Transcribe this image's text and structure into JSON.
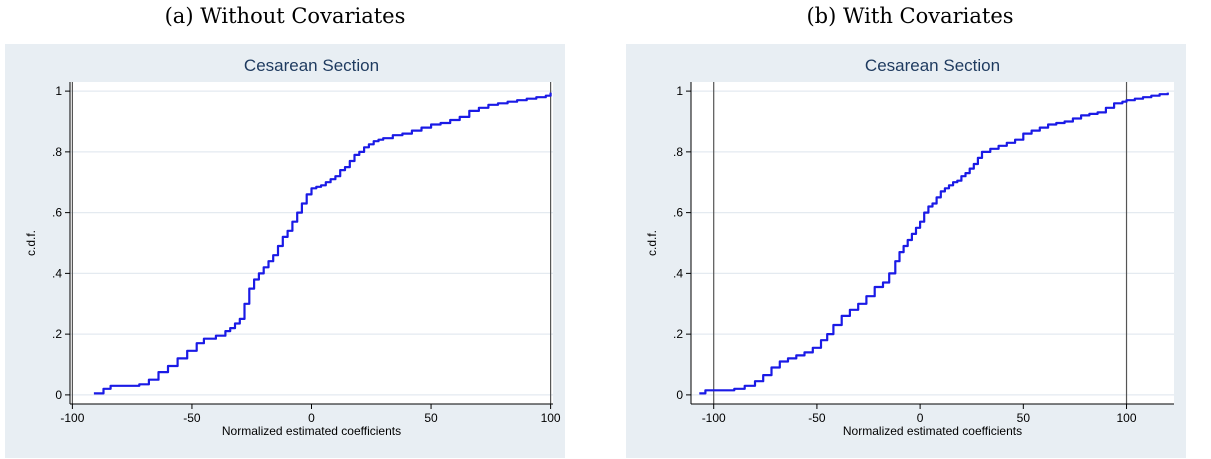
{
  "captions": [
    "(a) Without Covariates",
    "(b) With Covariates"
  ],
  "colors": {
    "outer_bg": "#e8eef3",
    "plot_bg": "#ffffff",
    "line": "#1a1ae6",
    "grid": "#e4eaf0",
    "title": "#1e3a5f",
    "axis": "#000000"
  },
  "chart_data": [
    {
      "type": "line",
      "title": "Cesarean Section",
      "xlabel": "Normalized estimated coefficients",
      "ylabel": "c.d.f.",
      "xlim": [
        -101,
        101
      ],
      "ylim": [
        -0.03,
        1.03
      ],
      "xticks": [
        -100,
        -50,
        0,
        50,
        100
      ],
      "xtick_labels": [
        "-100",
        "-50",
        "0",
        "50",
        "100"
      ],
      "yticks": [
        0,
        0.2,
        0.4,
        0.6,
        0.8,
        1
      ],
      "ytick_labels": [
        "0",
        ".2",
        ".4",
        ".6",
        ".8",
        "1"
      ],
      "grid": true,
      "vlines": [
        -100,
        100
      ],
      "series": [
        {
          "x": [
            -91,
            -87,
            -84,
            -72,
            -68,
            -64,
            -60,
            -56,
            -52,
            -48,
            -45,
            -40,
            -36,
            -34,
            -32,
            -30,
            -28,
            -26,
            -24,
            -22,
            -20,
            -18,
            -16,
            -14,
            -12,
            -10,
            -8,
            -6,
            -4,
            -2,
            0,
            2,
            4,
            6,
            8,
            10,
            12,
            14,
            16,
            18,
            20,
            22,
            24,
            26,
            28,
            30,
            34,
            38,
            42,
            46,
            50,
            54,
            58,
            62,
            66,
            70,
            74,
            78,
            82,
            86,
            90,
            94,
            98,
            100
          ],
          "y": [
            0.005,
            0.02,
            0.03,
            0.035,
            0.05,
            0.075,
            0.095,
            0.12,
            0.145,
            0.17,
            0.185,
            0.195,
            0.21,
            0.22,
            0.235,
            0.25,
            0.3,
            0.35,
            0.38,
            0.4,
            0.42,
            0.44,
            0.46,
            0.49,
            0.52,
            0.54,
            0.57,
            0.6,
            0.63,
            0.66,
            0.68,
            0.685,
            0.69,
            0.7,
            0.71,
            0.72,
            0.74,
            0.75,
            0.77,
            0.79,
            0.8,
            0.815,
            0.825,
            0.835,
            0.84,
            0.845,
            0.855,
            0.86,
            0.87,
            0.88,
            0.89,
            0.895,
            0.905,
            0.915,
            0.935,
            0.945,
            0.955,
            0.96,
            0.965,
            0.97,
            0.975,
            0.98,
            0.985,
            0.995
          ]
        }
      ]
    },
    {
      "type": "line",
      "title": "Cesarean Section",
      "xlabel": "Normalized estimated coefficients",
      "ylabel": "c.d.f.",
      "xlim": [
        -111,
        123
      ],
      "ylim": [
        -0.03,
        1.03
      ],
      "xticks": [
        -100,
        -50,
        0,
        50,
        100
      ],
      "xtick_labels": [
        "-100",
        "-50",
        "0",
        "50",
        "100"
      ],
      "yticks": [
        0,
        0.2,
        0.4,
        0.6,
        0.8,
        1
      ],
      "ytick_labels": [
        "0",
        ".2",
        ".4",
        ".6",
        ".8",
        "1"
      ],
      "grid": true,
      "vlines": [
        -100,
        100
      ],
      "series": [
        {
          "x": [
            -107,
            -104,
            -100,
            -90,
            -85,
            -80,
            -76,
            -72,
            -68,
            -64,
            -60,
            -56,
            -52,
            -48,
            -45,
            -42,
            -38,
            -34,
            -30,
            -26,
            -22,
            -18,
            -15,
            -12,
            -10,
            -8,
            -6,
            -4,
            -2,
            0,
            2,
            4,
            6,
            8,
            10,
            12,
            14,
            16,
            18,
            20,
            22,
            24,
            26,
            28,
            30,
            34,
            38,
            42,
            46,
            50,
            54,
            58,
            62,
            66,
            70,
            74,
            78,
            82,
            86,
            90,
            94,
            98,
            100,
            104,
            108,
            112,
            116,
            120
          ],
          "y": [
            0.005,
            0.015,
            0.015,
            0.02,
            0.03,
            0.045,
            0.065,
            0.09,
            0.11,
            0.12,
            0.13,
            0.14,
            0.155,
            0.18,
            0.2,
            0.23,
            0.26,
            0.28,
            0.3,
            0.325,
            0.355,
            0.37,
            0.4,
            0.44,
            0.47,
            0.49,
            0.51,
            0.53,
            0.55,
            0.57,
            0.6,
            0.62,
            0.63,
            0.65,
            0.67,
            0.68,
            0.69,
            0.7,
            0.705,
            0.72,
            0.73,
            0.745,
            0.76,
            0.78,
            0.8,
            0.81,
            0.82,
            0.83,
            0.84,
            0.86,
            0.87,
            0.88,
            0.89,
            0.895,
            0.9,
            0.91,
            0.92,
            0.925,
            0.93,
            0.945,
            0.96,
            0.965,
            0.97,
            0.975,
            0.98,
            0.985,
            0.99,
            0.995
          ]
        }
      ]
    }
  ]
}
